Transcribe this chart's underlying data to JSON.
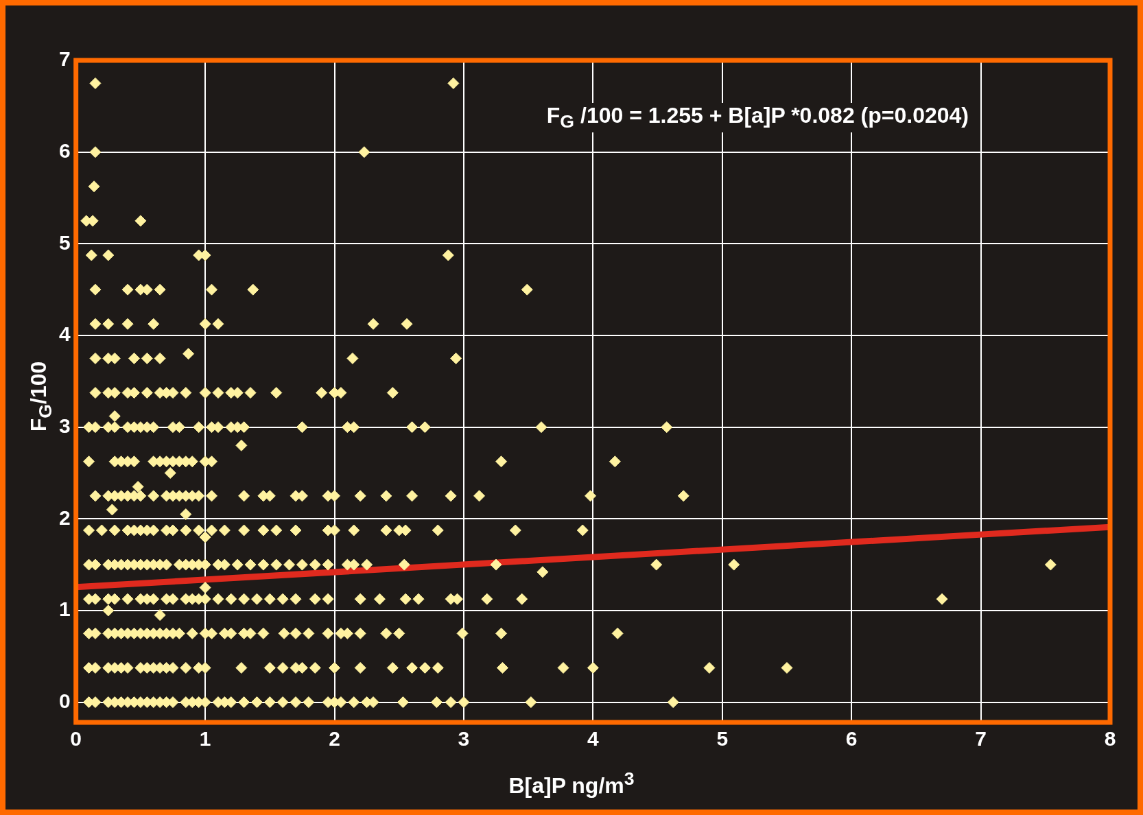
{
  "chart_data": {
    "type": "scatter",
    "xlabel": "B[a]P ng/m$^{3}$",
    "ylabel": "F$_{G}$/100",
    "annotations": [
      "F$_{G}$ /100 = 1.255 + B[a]P *0.082 (p=0.0204)"
    ],
    "xlim": [
      0,
      8
    ],
    "ylim": [
      -0.22,
      7
    ],
    "xticks": [
      0,
      1,
      2,
      3,
      4,
      5,
      6,
      7,
      8
    ],
    "yticks": [
      0,
      1,
      2,
      3,
      4,
      5,
      6,
      7
    ],
    "grid": true,
    "legend": false,
    "marker": "diamond",
    "series": [
      {
        "type": "scatter",
        "color": "#fff2a0",
        "x": [
          0.1,
          0.15,
          0.25,
          0.3,
          0.35,
          0.4,
          0.45,
          0.5,
          0.55,
          0.6,
          0.65,
          0.7,
          0.75,
          0.85,
          0.9,
          0.95,
          1.0,
          1.1,
          1.15,
          1.2,
          1.3,
          1.4,
          1.5,
          1.6,
          1.7,
          1.8,
          1.95,
          2.0,
          2.05,
          2.15,
          2.25,
          2.3,
          2.53,
          2.79,
          2.9,
          3.0,
          3.52,
          4.62
        ],
        "values": [
          0,
          0,
          0,
          0,
          0,
          0,
          0,
          0,
          0,
          0,
          0,
          0,
          0,
          0,
          0,
          0,
          0,
          0,
          0,
          0,
          0,
          0,
          0,
          0,
          0,
          0,
          0,
          0,
          0,
          0,
          0,
          0,
          0,
          0,
          0,
          0,
          0,
          0
        ]
      },
      {
        "type": "scatter",
        "color": "#fff2a0",
        "x": [
          0.1,
          0.15,
          0.25,
          0.3,
          0.35,
          0.4,
          0.5,
          0.55,
          0.6,
          0.65,
          0.7,
          0.75,
          0.85,
          0.95,
          1.0,
          1.28,
          1.5,
          1.6,
          1.7,
          1.75,
          1.85,
          2.0,
          2.2,
          2.45,
          2.6,
          2.7,
          2.8,
          3.3,
          3.77,
          4.0,
          4.9,
          5.5
        ],
        "values": [
          0.375,
          0.375,
          0.375,
          0.375,
          0.375,
          0.375,
          0.375,
          0.375,
          0.375,
          0.375,
          0.375,
          0.375,
          0.375,
          0.375,
          0.375,
          0.375,
          0.375,
          0.375,
          0.375,
          0.375,
          0.375,
          0.375,
          0.375,
          0.375,
          0.375,
          0.375,
          0.375,
          0.375,
          0.375,
          0.375,
          0.375,
          0.375
        ]
      },
      {
        "type": "scatter",
        "color": "#fff2a0",
        "x": [
          0.1,
          0.15,
          0.25,
          0.3,
          0.35,
          0.4,
          0.45,
          0.5,
          0.55,
          0.6,
          0.65,
          0.7,
          0.75,
          0.8,
          0.9,
          1.0,
          1.05,
          1.15,
          1.2,
          1.3,
          1.35,
          1.45,
          1.61,
          1.7,
          1.8,
          1.95,
          2.05,
          2.1,
          2.2,
          2.4,
          2.5,
          2.99,
          3.29,
          4.19
        ],
        "values": [
          0.75,
          0.75,
          0.75,
          0.75,
          0.75,
          0.75,
          0.75,
          0.75,
          0.75,
          0.75,
          0.75,
          0.75,
          0.75,
          0.75,
          0.75,
          0.75,
          0.75,
          0.75,
          0.75,
          0.75,
          0.75,
          0.75,
          0.75,
          0.75,
          0.75,
          0.75,
          0.75,
          0.75,
          0.75,
          0.75,
          0.75,
          0.75,
          0.75,
          0.75
        ]
      },
      {
        "type": "scatter",
        "color": "#fff2a0",
        "x": [
          0.1,
          0.15,
          0.25,
          0.3,
          0.4,
          0.5,
          0.55,
          0.6,
          0.7,
          0.75,
          0.85,
          0.9,
          0.95,
          1.0,
          1.1,
          1.2,
          1.3,
          1.4,
          1.5,
          1.6,
          1.7,
          1.85,
          1.95,
          2.2,
          2.35,
          2.55,
          2.65,
          2.9,
          2.95,
          3.18,
          3.45,
          6.7
        ],
        "values": [
          1.125,
          1.125,
          1.125,
          1.125,
          1.125,
          1.125,
          1.125,
          1.125,
          1.125,
          1.125,
          1.125,
          1.125,
          1.125,
          1.125,
          1.125,
          1.125,
          1.125,
          1.125,
          1.125,
          1.125,
          1.125,
          1.125,
          1.125,
          1.125,
          1.125,
          1.125,
          1.125,
          1.125,
          1.125,
          1.125,
          1.125,
          1.125
        ]
      },
      {
        "type": "scatter",
        "color": "#fff2a0",
        "x": [
          0.1,
          0.15,
          0.25,
          0.3,
          0.35,
          0.4,
          0.45,
          0.5,
          0.55,
          0.6,
          0.65,
          0.7,
          0.8,
          0.85,
          0.9,
          0.95,
          1.0,
          1.1,
          1.15,
          1.25,
          1.35,
          1.45,
          1.55,
          1.65,
          1.75,
          1.85,
          1.95,
          2.1,
          2.15,
          2.25,
          2.54,
          3.25,
          4.49,
          5.09,
          7.54
        ],
        "values": [
          1.5,
          1.5,
          1.5,
          1.5,
          1.5,
          1.5,
          1.5,
          1.5,
          1.5,
          1.5,
          1.5,
          1.5,
          1.5,
          1.5,
          1.5,
          1.5,
          1.5,
          1.5,
          1.5,
          1.5,
          1.5,
          1.5,
          1.5,
          1.5,
          1.5,
          1.5,
          1.5,
          1.5,
          1.5,
          1.5,
          1.5,
          1.5,
          1.5,
          1.5,
          1.5
        ]
      },
      {
        "type": "scatter",
        "color": "#fff2a0",
        "x": [
          0.1,
          0.2,
          0.3,
          0.4,
          0.45,
          0.5,
          0.55,
          0.6,
          0.7,
          0.75,
          0.85,
          0.95,
          1.05,
          1.15,
          1.3,
          1.45,
          1.55,
          1.7,
          1.95,
          2.0,
          2.15,
          2.4,
          2.5,
          2.55,
          2.8,
          3.4,
          3.92
        ],
        "values": [
          1.875,
          1.875,
          1.875,
          1.875,
          1.875,
          1.875,
          1.875,
          1.875,
          1.875,
          1.875,
          1.875,
          1.875,
          1.875,
          1.875,
          1.875,
          1.875,
          1.875,
          1.875,
          1.875,
          1.875,
          1.875,
          1.875,
          1.875,
          1.875,
          1.875,
          1.875,
          1.875
        ]
      },
      {
        "type": "scatter",
        "color": "#fff2a0",
        "x": [
          0.15,
          0.25,
          0.3,
          0.35,
          0.4,
          0.45,
          0.5,
          0.6,
          0.7,
          0.75,
          0.8,
          0.85,
          0.9,
          0.95,
          1.05,
          1.3,
          1.45,
          1.5,
          1.7,
          1.75,
          1.95,
          2.0,
          2.2,
          2.4,
          2.6,
          2.9,
          3.12,
          3.98,
          4.7
        ],
        "values": [
          2.25,
          2.25,
          2.25,
          2.25,
          2.25,
          2.25,
          2.25,
          2.25,
          2.25,
          2.25,
          2.25,
          2.25,
          2.25,
          2.25,
          2.25,
          2.25,
          2.25,
          2.25,
          2.25,
          2.25,
          2.25,
          2.25,
          2.25,
          2.25,
          2.25,
          2.25,
          2.25,
          2.25,
          2.25
        ]
      },
      {
        "type": "scatter",
        "color": "#fff2a0",
        "x": [
          0.1,
          0.3,
          0.35,
          0.4,
          0.45,
          0.6,
          0.65,
          0.7,
          0.75,
          0.8,
          0.85,
          0.9,
          1.0,
          1.05,
          3.29,
          4.17
        ],
        "values": [
          2.625,
          2.625,
          2.625,
          2.625,
          2.625,
          2.625,
          2.625,
          2.625,
          2.625,
          2.625,
          2.625,
          2.625,
          2.625,
          2.625,
          2.625,
          2.625
        ]
      },
      {
        "type": "scatter",
        "color": "#fff2a0",
        "x": [
          0.1,
          0.15,
          0.25,
          0.3,
          0.4,
          0.45,
          0.5,
          0.55,
          0.6,
          0.75,
          0.8,
          0.95,
          1.05,
          1.1,
          1.2,
          1.25,
          1.3,
          1.75,
          2.1,
          2.15,
          2.6,
          2.7,
          3.6,
          4.57
        ],
        "values": [
          3,
          3,
          3,
          3,
          3,
          3,
          3,
          3,
          3,
          3,
          3,
          3,
          3,
          3,
          3,
          3,
          3,
          3,
          3,
          3,
          3,
          3,
          3,
          3
        ]
      },
      {
        "type": "scatter",
        "color": "#fff2a0",
        "x": [
          0.15,
          0.25,
          0.3,
          0.4,
          0.45,
          0.55,
          0.65,
          0.7,
          0.75,
          0.85,
          1.0,
          1.1,
          1.2,
          1.25,
          1.35,
          1.55,
          1.9,
          2.0,
          2.05,
          2.45
        ],
        "values": [
          3.375,
          3.375,
          3.375,
          3.375,
          3.375,
          3.375,
          3.375,
          3.375,
          3.375,
          3.375,
          3.375,
          3.375,
          3.375,
          3.375,
          3.375,
          3.375,
          3.375,
          3.375,
          3.375,
          3.375
        ]
      },
      {
        "type": "scatter",
        "color": "#fff2a0",
        "x": [
          0.15,
          0.25,
          0.3,
          0.45,
          0.55,
          0.65,
          2.14,
          2.94
        ],
        "values": [
          3.75,
          3.75,
          3.75,
          3.75,
          3.75,
          3.75,
          3.75,
          3.75
        ]
      },
      {
        "type": "scatter",
        "color": "#fff2a0",
        "x": [
          0.15,
          0.25,
          0.4,
          0.6,
          1.0,
          1.1,
          2.3,
          2.56
        ],
        "values": [
          4.125,
          4.125,
          4.125,
          4.125,
          4.125,
          4.125,
          4.125,
          4.125
        ]
      },
      {
        "type": "scatter",
        "color": "#fff2a0",
        "x": [
          0.15,
          0.4,
          0.5,
          0.55,
          0.65,
          1.05,
          1.37,
          3.49
        ],
        "values": [
          4.5,
          4.5,
          4.5,
          4.5,
          4.5,
          4.5,
          4.5,
          4.5
        ]
      },
      {
        "type": "scatter",
        "color": "#fff2a0",
        "x": [
          0.12,
          0.25,
          0.95,
          1.0,
          2.88,
          0.08,
          0.13,
          0.5,
          0.14,
          0.15,
          2.23,
          0.15,
          2.92
        ],
        "values": [
          4.875,
          4.875,
          4.875,
          4.875,
          4.875,
          5.25,
          5.25,
          5.25,
          5.625,
          6,
          6,
          6.75,
          6.75
        ]
      },
      {
        "type": "scatter",
        "color": "#fff2a0",
        "x": [
          0.3,
          0.28,
          0.85,
          0.48,
          0.73,
          0.87,
          1.28,
          0.25,
          0.65,
          1.0,
          1.0,
          3.61
        ],
        "values": [
          3.12,
          2.1,
          2.05,
          2.35,
          2.5,
          3.8,
          2.8,
          1.0,
          0.95,
          1.8,
          1.25,
          1.42
        ]
      },
      {
        "type": "line",
        "marker": "none",
        "color": "#e02a1e",
        "x": [
          0,
          8
        ],
        "values": [
          1.255,
          1.911
        ]
      }
    ]
  }
}
